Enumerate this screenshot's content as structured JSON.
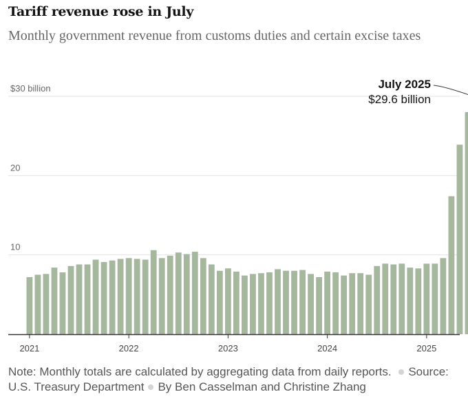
{
  "header": {
    "title": "Tariff revenue rose in July",
    "subtitle": "Monthly government revenue from customs duties and certain excise taxes"
  },
  "footer": {
    "note": "Note: Monthly totals are calculated by aggregating data from daily reports.",
    "source": "Source: U.S. Treasury Department",
    "byline": "By Ben Casselman and Christine Zhang"
  },
  "colors": {
    "bar": "#a5b89e",
    "highlight_bar": "#6b8c62",
    "grid": "#e2e2e2",
    "axis": "#333333",
    "tick_text": "#666666"
  },
  "chart_data": {
    "type": "bar",
    "title": "Tariff revenue rose in July",
    "xlabel": "",
    "ylabel": "",
    "ylim": [
      0,
      30
    ],
    "y_ticks": [
      {
        "value": 30,
        "label": "$30 billion"
      },
      {
        "value": 20,
        "label": "20"
      },
      {
        "value": 10,
        "label": "10"
      }
    ],
    "x_ticks": [
      {
        "category": "Jan 2021",
        "label": "2021"
      },
      {
        "category": "Jan 2022",
        "label": "2022"
      },
      {
        "category": "Jan 2023",
        "label": "2023"
      },
      {
        "category": "Jan 2024",
        "label": "2024"
      },
      {
        "category": "Jan 2025",
        "label": "2025"
      }
    ],
    "grid": true,
    "categories": [
      "Jan 2021",
      "Feb 2021",
      "Mar 2021",
      "Apr 2021",
      "May 2021",
      "Jun 2021",
      "Jul 2021",
      "Aug 2021",
      "Sep 2021",
      "Oct 2021",
      "Nov 2021",
      "Dec 2021",
      "Jan 2022",
      "Feb 2022",
      "Mar 2022",
      "Apr 2022",
      "May 2022",
      "Jun 2022",
      "Jul 2022",
      "Aug 2022",
      "Sep 2022",
      "Oct 2022",
      "Nov 2022",
      "Dec 2022",
      "Jan 2023",
      "Feb 2023",
      "Mar 2023",
      "Apr 2023",
      "May 2023",
      "Jun 2023",
      "Jul 2023",
      "Aug 2023",
      "Sep 2023",
      "Oct 2023",
      "Nov 2023",
      "Dec 2023",
      "Jan 2024",
      "Feb 2024",
      "Mar 2024",
      "Apr 2024",
      "May 2024",
      "Jun 2024",
      "Jul 2024",
      "Aug 2024",
      "Sep 2024",
      "Oct 2024",
      "Nov 2024",
      "Dec 2024",
      "Jan 2025",
      "Feb 2025",
      "Mar 2025",
      "Apr 2025",
      "May 2025",
      "Jun 2025",
      "Jul 2025"
    ],
    "values": [
      7.2,
      7.5,
      7.6,
      8.4,
      7.8,
      8.6,
      8.8,
      8.8,
      9.4,
      9.1,
      9.3,
      9.5,
      9.6,
      9.5,
      9.4,
      10.6,
      9.6,
      9.9,
      10.3,
      10.1,
      10.4,
      9.6,
      8.8,
      8.0,
      8.3,
      7.9,
      7.4,
      7.6,
      7.7,
      7.8,
      8.2,
      8.0,
      8.0,
      8.1,
      7.6,
      7.2,
      7.9,
      7.8,
      7.4,
      7.7,
      7.7,
      7.5,
      8.6,
      8.9,
      8.8,
      8.9,
      8.4,
      8.3,
      8.9,
      8.9,
      9.6,
      17.4,
      23.9,
      28.0,
      29.6
    ],
    "highlight_index": 54,
    "annotation": {
      "label": "July 2025",
      "value_text": "$29.6 billion"
    }
  }
}
